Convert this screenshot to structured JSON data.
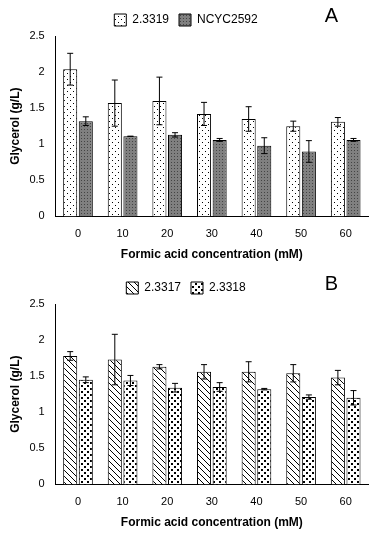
{
  "chart_data": [
    {
      "type": "bar",
      "title": "A",
      "xlabel": "Formic acid concentration (mM)",
      "ylabel": "Glycerol (g/L)",
      "categories": [
        "0",
        "10",
        "20",
        "30",
        "40",
        "50",
        "60"
      ],
      "series": [
        {
          "name": "2.3319",
          "color": "#ffffff",
          "values": [
            2.04,
            1.57,
            1.6,
            1.42,
            1.35,
            1.25,
            1.31
          ],
          "errors": [
            0.22,
            0.32,
            0.33,
            0.16,
            0.17,
            0.07,
            0.06
          ]
        },
        {
          "name": "NCYC2592",
          "color": "#808080",
          "values": [
            1.32,
            1.11,
            1.13,
            1.06,
            0.98,
            0.9,
            1.06
          ],
          "errors": [
            0.06,
            0,
            0.03,
            0.02,
            0.11,
            0.15,
            0.02
          ]
        }
      ],
      "ylim": [
        0,
        2.5
      ],
      "yticks": [
        0,
        0.5,
        1,
        1.5,
        2,
        2.5
      ],
      "grid": false,
      "legend": "top"
    },
    {
      "type": "bar",
      "title": "B",
      "xlabel": "Formic acid concentration (mM)",
      "ylabel": "Glycerol (g/L)",
      "categories": [
        "0",
        "10",
        "20",
        "30",
        "40",
        "50",
        "60"
      ],
      "series": [
        {
          "name": "2.3317",
          "color": "#ffffff",
          "values": [
            1.78,
            1.73,
            1.63,
            1.56,
            1.56,
            1.54,
            1.48
          ],
          "errors": [
            0.06,
            0.35,
            0.03,
            0.1,
            0.14,
            0.12,
            0.1
          ]
        },
        {
          "name": "2.3318",
          "color": "#ffffff",
          "values": [
            1.45,
            1.44,
            1.34,
            1.35,
            1.32,
            1.21,
            1.2
          ],
          "errors": [
            0.04,
            0.07,
            0.06,
            0.06,
            0.01,
            0.03,
            0.1
          ]
        }
      ],
      "ylim": [
        0,
        2.5
      ],
      "yticks": [
        0,
        0.5,
        1,
        1.5,
        2,
        2.5
      ],
      "grid": false,
      "legend": "top"
    }
  ]
}
